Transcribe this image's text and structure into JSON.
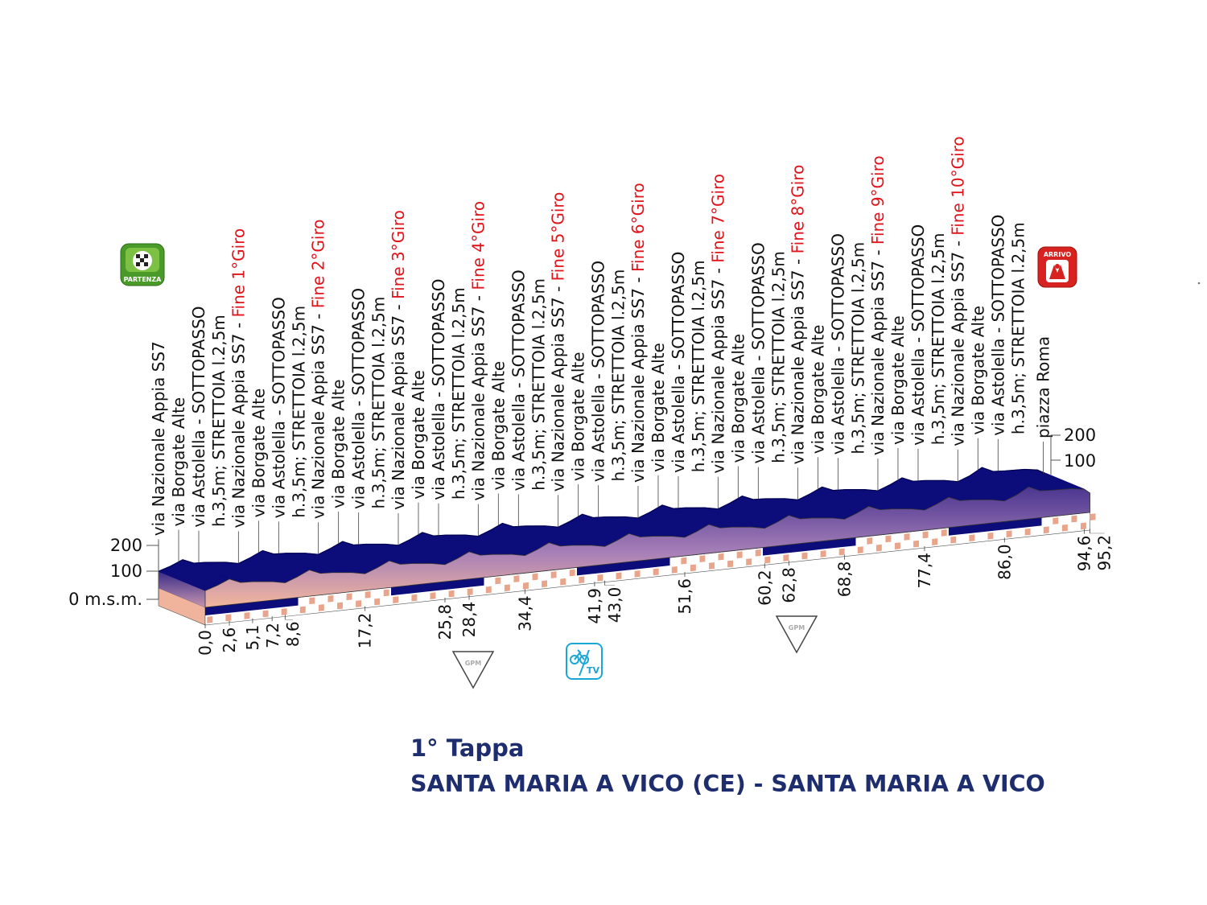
{
  "chart_data": {
    "type": "area",
    "title": "1° Tappa",
    "subtitle": "SANTA MARIA A VICO (CE) - SANTA MARIA A VICO",
    "y_unit_label": "m.s.m.",
    "left_axis_ticks": [
      "200",
      "100",
      "0 m.s.m."
    ],
    "right_axis_ticks": [
      "200",
      "100"
    ],
    "ylim": [
      0,
      200
    ],
    "xlim": [
      0,
      95.2
    ],
    "km_ticks": [
      "0,0",
      "2,6",
      "5,1",
      "7,2",
      "8,6",
      "17,2",
      "25,8",
      "28,4",
      "34,4",
      "41,9",
      "43,0",
      "51,6",
      "60,2",
      "62,8",
      "68,8",
      "77,4",
      "86,0",
      "94,6",
      "95,2"
    ],
    "km_values": [
      0,
      2.6,
      5.1,
      7.2,
      8.6,
      17.2,
      25.8,
      28.4,
      34.4,
      41.9,
      43.0,
      51.6,
      60.2,
      62.8,
      68.8,
      77.4,
      86.0,
      94.6,
      95.2
    ],
    "elevation_profile": {
      "km": [
        0,
        1.3,
        2.6,
        3.8,
        5.1,
        7.2,
        8.6,
        9.9,
        11.2,
        12.4,
        13.7,
        15.8,
        17.2,
        18.5,
        19.8,
        21,
        22.3,
        24.4,
        25.8,
        27.1,
        28.4,
        29.6,
        30.9,
        33,
        34.4,
        35.7,
        37,
        38.2,
        39.5,
        41.6,
        43,
        44.3,
        45.6,
        46.8,
        48.1,
        50.2,
        51.6,
        52.9,
        54.2,
        55.4,
        56.7,
        58.8,
        60.2,
        61.5,
        62.8,
        64,
        65.3,
        67.4,
        68.8,
        70.1,
        71.4,
        72.6,
        73.9,
        76,
        77.4,
        78.7,
        80,
        81.2,
        82.5,
        84.6,
        86,
        87.3,
        88.6,
        89.8,
        91.1,
        93.2,
        94.6,
        95.2
      ],
      "elevation_m": [
        65,
        80,
        100,
        82,
        80,
        72,
        62,
        80,
        102,
        84,
        82,
        74,
        64,
        82,
        104,
        86,
        84,
        76,
        66,
        84,
        106,
        88,
        86,
        78,
        68,
        86,
        108,
        90,
        88,
        80,
        70,
        88,
        110,
        92,
        90,
        82,
        72,
        90,
        112,
        94,
        92,
        84,
        74,
        92,
        114,
        96,
        94,
        86,
        76,
        94,
        116,
        98,
        96,
        88,
        78,
        96,
        118,
        100,
        98,
        90,
        80,
        98,
        125,
        105,
        102,
        100,
        92,
        75
      ]
    },
    "track_bands_km": [
      [
        0,
        10
      ],
      [
        20,
        30
      ],
      [
        40,
        50
      ],
      [
        60,
        70
      ],
      [
        80,
        90
      ]
    ],
    "waypoints": [
      {
        "km": 0,
        "text": "via Nazionale Appia SS7"
      },
      {
        "km": 2.6,
        "text": "via Borgate Alte"
      },
      {
        "km": 5.1,
        "text": "via Astolella - SOTTOPASSO",
        "text2": "h.3,5m; STRETTOIA l.2,5m"
      },
      {
        "km": 8.6,
        "text": "via Nazionale Appia SS7 - ",
        "lap": "Fine 1°Giro"
      },
      {
        "km": 11.2,
        "text": "via Borgate Alte"
      },
      {
        "km": 13.7,
        "text": "via Astolella - SOTTOPASSO",
        "text2": "h.3,5m; STRETTOIA l.2,5m"
      },
      {
        "km": 17.2,
        "text": "via Nazionale Appia SS7 - ",
        "lap": "Fine 2°Giro"
      },
      {
        "km": 19.8,
        "text": "via Borgate Alte"
      },
      {
        "km": 22.3,
        "text": "via Astolella - SOTTOPASSO",
        "text2": "h.3,5m; STRETTOIA l.2,5m"
      },
      {
        "km": 25.8,
        "text": "via Nazionale Appia SS7 - ",
        "lap": "Fine 3°Giro"
      },
      {
        "km": 28.4,
        "text": "via Borgate Alte"
      },
      {
        "km": 30.9,
        "text": "via Astolella - SOTTOPASSO",
        "text2": "h.3,5m; STRETTOIA l.2,5m"
      },
      {
        "km": 34.4,
        "text": "via Nazionale Appia SS7 - ",
        "lap": "Fine 4°Giro"
      },
      {
        "km": 37.0,
        "text": "via Borgate Alte"
      },
      {
        "km": 39.5,
        "text": "via Astolella - SOTTOPASSO",
        "text2": "h.3,5m; STRETTOIA l.2,5m"
      },
      {
        "km": 43.0,
        "text": "via Nazionale Appia SS7 - ",
        "lap": "Fine 5°Giro"
      },
      {
        "km": 45.6,
        "text": "via Borgate Alte"
      },
      {
        "km": 48.1,
        "text": "via Astolella - SOTTOPASSO",
        "text2": "h.3,5m; STRETTOIA l.2,5m"
      },
      {
        "km": 51.6,
        "text": "via Nazionale Appia SS7 - ",
        "lap": "Fine 6°Giro"
      },
      {
        "km": 54.2,
        "text": "via Borgate Alte"
      },
      {
        "km": 56.7,
        "text": "via Astolella - SOTTOPASSO",
        "text2": "h.3,5m; STRETTOIA l.2,5m"
      },
      {
        "km": 60.2,
        "text": "via Nazionale Appia SS7 - ",
        "lap": "Fine 7°Giro"
      },
      {
        "km": 62.8,
        "text": "via Borgate Alte"
      },
      {
        "km": 65.3,
        "text": "via Astolella - SOTTOPASSO",
        "text2": "h.3,5m; STRETTOIA l.2,5m"
      },
      {
        "km": 68.8,
        "text": "via Nazionale Appia SS7 - ",
        "lap": "Fine 8°Giro"
      },
      {
        "km": 71.4,
        "text": "via Borgate Alte"
      },
      {
        "km": 73.9,
        "text": "via Astolella - SOTTOPASSO",
        "text2": "h.3,5m; STRETTOIA l.2,5m"
      },
      {
        "km": 77.4,
        "text": "via Nazionale Appia SS7 - ",
        "lap": "Fine 9°Giro"
      },
      {
        "km": 80.0,
        "text": "via Borgate Alte"
      },
      {
        "km": 82.5,
        "text": "via Astolella - SOTTOPASSO",
        "text2": "h.3,5m; STRETTOIA l.2,5m"
      },
      {
        "km": 86.0,
        "text": "via Nazionale Appia SS7 - ",
        "lap": "Fine 10°Giro"
      },
      {
        "km": 88.6,
        "text": "via Borgate Alte"
      },
      {
        "km": 91.1,
        "text": "via Astolella - SOTTOPASSO",
        "text2": "h.3,5m; STRETTOIA l.2,5m"
      },
      {
        "km": 95.2,
        "text": "piazza Roma"
      }
    ],
    "markers": {
      "start": {
        "label": "PARTENZA",
        "icon": "checkered-flag-icon",
        "color": "#4a9a2a"
      },
      "finish": {
        "label": "ARRIVO",
        "icon": "finish-arrivo-icon",
        "color": "#d8221f"
      },
      "gpm": [
        {
          "km": 28.4,
          "label": "GPM"
        },
        {
          "km": 62.8,
          "label": "GPM"
        }
      ],
      "tv": {
        "km": 41.9,
        "label": "TV",
        "color": "#1aa6d6"
      }
    },
    "colors": {
      "profile_top": "#0c0c7a",
      "face_top": "#5a3f93",
      "face_bottom": "#f0b49c",
      "lap_label": "#e0141b",
      "title": "#1d2d6e",
      "band": "#0c0c7a",
      "check": "#e8a58c"
    }
  }
}
